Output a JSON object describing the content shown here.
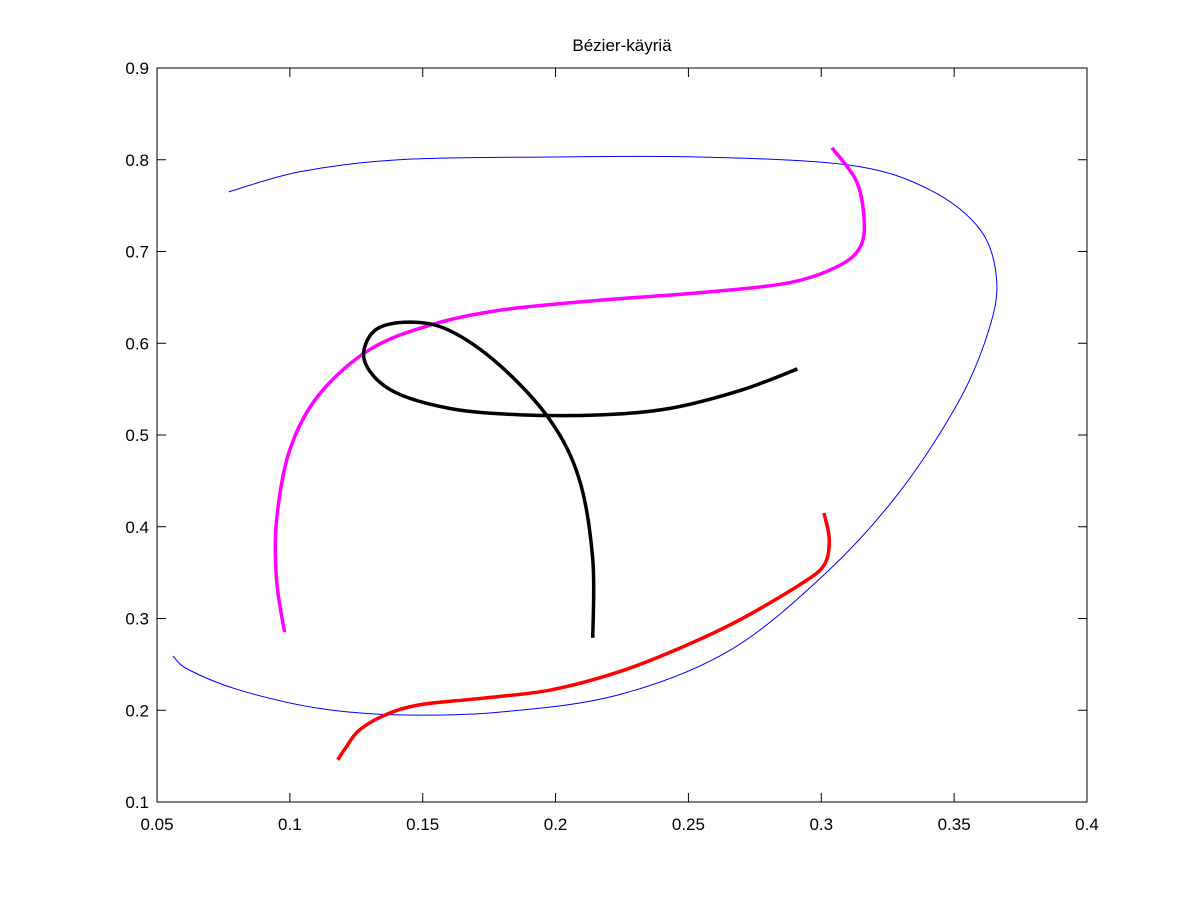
{
  "chart_data": {
    "type": "line",
    "title": "Bézier-käyriä",
    "xlim": [
      0.05,
      0.4
    ],
    "xticks": [
      0.05,
      0.1,
      0.15,
      0.2,
      0.25,
      0.3,
      0.35,
      0.4
    ],
    "ylim": [
      0.1,
      0.9
    ],
    "yticks": [
      0.1,
      0.2,
      0.3,
      0.4,
      0.5,
      0.6,
      0.7,
      0.8,
      0.9
    ],
    "grid": false,
    "series": [
      {
        "color": "#0000ff",
        "linewidth": 1,
        "x": [
          0.077,
          0.104,
          0.141,
          0.198,
          0.254,
          0.311,
          0.341,
          0.36,
          0.366,
          0.363,
          0.352,
          0.33,
          0.303,
          0.266,
          0.224,
          0.179,
          0.141,
          0.111,
          0.081,
          0.062,
          0.056
        ],
        "values": [
          0.765,
          0.787,
          0.8,
          0.803,
          0.803,
          0.794,
          0.767,
          0.723,
          0.669,
          0.614,
          0.538,
          0.44,
          0.353,
          0.266,
          0.217,
          0.198,
          0.195,
          0.202,
          0.222,
          0.244,
          0.259
        ]
      },
      {
        "color": "#ff00ff",
        "linewidth": 3.5,
        "x": [
          0.304,
          0.313,
          0.316,
          0.315,
          0.307,
          0.288,
          0.254,
          0.217,
          0.179,
          0.153,
          0.13,
          0.111,
          0.1,
          0.095,
          0.095,
          0.098
        ],
        "values": [
          0.813,
          0.778,
          0.74,
          0.707,
          0.685,
          0.666,
          0.655,
          0.647,
          0.636,
          0.62,
          0.593,
          0.544,
          0.484,
          0.407,
          0.342,
          0.285
        ]
      },
      {
        "color": "#000000",
        "linewidth": 3.5,
        "x": [
          0.291,
          0.27,
          0.243,
          0.217,
          0.187,
          0.16,
          0.138,
          0.128,
          0.132,
          0.145,
          0.16,
          0.179,
          0.198,
          0.209,
          0.214,
          0.214
        ],
        "values": [
          0.572,
          0.549,
          0.529,
          0.522,
          0.522,
          0.529,
          0.549,
          0.582,
          0.614,
          0.623,
          0.614,
          0.576,
          0.516,
          0.451,
          0.364,
          0.279
        ]
      },
      {
        "color": "#ff0000",
        "linewidth": 3.5,
        "x": [
          0.301,
          0.303,
          0.301,
          0.292,
          0.269,
          0.247,
          0.224,
          0.198,
          0.172,
          0.149,
          0.136,
          0.126,
          0.121,
          0.118
        ],
        "values": [
          0.415,
          0.386,
          0.358,
          0.337,
          0.298,
          0.268,
          0.242,
          0.222,
          0.213,
          0.206,
          0.195,
          0.178,
          0.159,
          0.146
        ]
      }
    ]
  }
}
